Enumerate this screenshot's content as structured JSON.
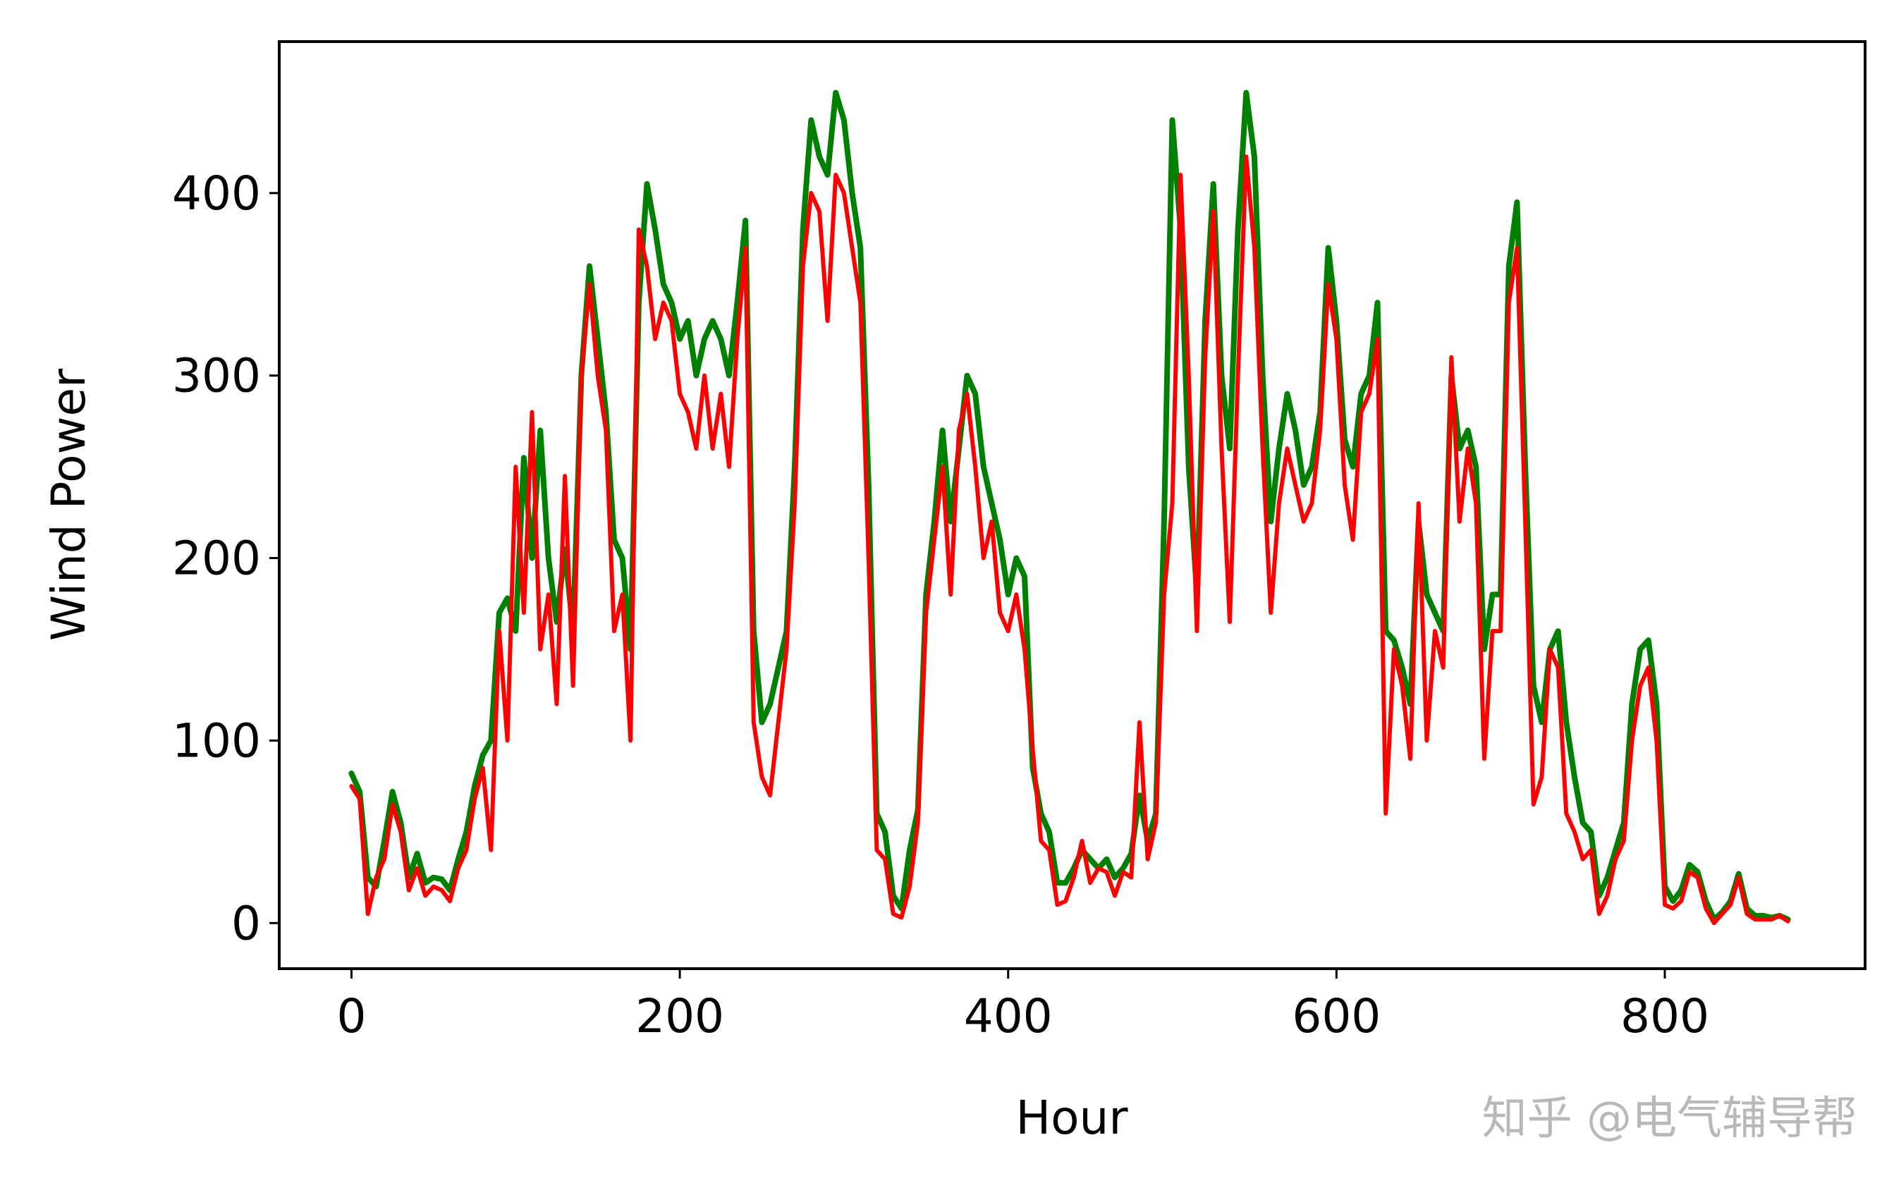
{
  "chart_data": {
    "type": "line",
    "xlabel": "Hour",
    "ylabel": "Wind Power",
    "xlim": [
      -44,
      922
    ],
    "ylim": [
      -25,
      483
    ],
    "xticks": [
      0,
      200,
      400,
      600,
      800
    ],
    "yticks": [
      0,
      100,
      200,
      300,
      400
    ],
    "grid": false,
    "legend": "none",
    "watermark": "知乎 @电气辅导帮",
    "series": [
      {
        "color": "#008000",
        "x": [
          0,
          5,
          10,
          15,
          20,
          25,
          30,
          35,
          40,
          45,
          50,
          55,
          60,
          65,
          70,
          75,
          80,
          85,
          90,
          95,
          100,
          105,
          110,
          115,
          120,
          125,
          130,
          135,
          140,
          145,
          150,
          155,
          160,
          165,
          170,
          175,
          180,
          185,
          190,
          195,
          200,
          205,
          210,
          215,
          220,
          225,
          230,
          235,
          240,
          245,
          250,
          255,
          260,
          265,
          270,
          275,
          280,
          285,
          290,
          295,
          300,
          305,
          310,
          315,
          320,
          325,
          330,
          335,
          340,
          345,
          350,
          355,
          360,
          365,
          370,
          375,
          380,
          385,
          390,
          395,
          400,
          405,
          410,
          415,
          420,
          425,
          430,
          435,
          440,
          445,
          450,
          455,
          460,
          465,
          470,
          475,
          480,
          485,
          490,
          495,
          500,
          505,
          510,
          515,
          520,
          525,
          530,
          535,
          540,
          545,
          550,
          555,
          560,
          565,
          570,
          575,
          580,
          585,
          590,
          595,
          600,
          605,
          610,
          615,
          620,
          625,
          630,
          635,
          640,
          645,
          650,
          655,
          660,
          665,
          670,
          675,
          680,
          685,
          690,
          695,
          700,
          705,
          710,
          715,
          720,
          725,
          730,
          735,
          740,
          745,
          750,
          755,
          760,
          765,
          770,
          775,
          780,
          785,
          790,
          795,
          800,
          805,
          810,
          815,
          820,
          825,
          830,
          835,
          840,
          845,
          850,
          855,
          860,
          865,
          870,
          875
        ],
        "values": [
          82,
          72,
          25,
          20,
          45,
          72,
          55,
          25,
          38,
          22,
          25,
          24,
          18,
          35,
          50,
          75,
          92,
          100,
          170,
          178,
          160,
          255,
          200,
          270,
          200,
          165,
          205,
          160,
          300,
          360,
          320,
          280,
          210,
          200,
          150,
          340,
          405,
          380,
          350,
          340,
          320,
          330,
          300,
          320,
          330,
          320,
          300,
          340,
          385,
          160,
          110,
          120,
          140,
          160,
          250,
          380,
          440,
          420,
          410,
          455,
          440,
          400,
          370,
          240,
          60,
          50,
          15,
          8,
          40,
          62,
          180,
          220,
          270,
          220,
          260,
          300,
          290,
          250,
          230,
          210,
          180,
          200,
          190,
          85,
          60,
          50,
          22,
          22,
          30,
          40,
          35,
          30,
          35,
          25,
          30,
          38,
          70,
          45,
          60,
          220,
          440,
          380,
          250,
          180,
          330,
          405,
          300,
          260,
          380,
          455,
          420,
          300,
          220,
          260,
          290,
          270,
          240,
          250,
          280,
          370,
          330,
          265,
          250,
          290,
          300,
          340,
          160,
          155,
          140,
          120,
          220,
          180,
          170,
          160,
          300,
          260,
          270,
          250,
          150,
          180,
          180,
          360,
          395,
          250,
          130,
          110,
          150,
          160,
          110,
          80,
          55,
          50,
          15,
          25,
          40,
          55,
          120,
          150,
          155,
          120,
          20,
          12,
          18,
          32,
          28,
          12,
          2,
          6,
          12,
          27,
          8,
          4,
          4,
          3,
          4,
          2
        ]
      },
      {
        "color": "#ff0000",
        "x": [
          0,
          5,
          10,
          15,
          20,
          25,
          30,
          35,
          40,
          45,
          50,
          55,
          60,
          65,
          70,
          75,
          80,
          85,
          90,
          95,
          100,
          105,
          110,
          115,
          120,
          125,
          130,
          135,
          140,
          145,
          150,
          155,
          160,
          165,
          170,
          175,
          180,
          185,
          190,
          195,
          200,
          205,
          210,
          215,
          220,
          225,
          230,
          235,
          240,
          245,
          250,
          255,
          260,
          265,
          270,
          275,
          280,
          285,
          290,
          295,
          300,
          305,
          310,
          315,
          320,
          325,
          330,
          335,
          340,
          345,
          350,
          355,
          360,
          365,
          370,
          375,
          380,
          385,
          390,
          395,
          400,
          405,
          410,
          415,
          420,
          425,
          430,
          435,
          440,
          445,
          450,
          455,
          460,
          465,
          470,
          475,
          480,
          485,
          490,
          495,
          500,
          505,
          510,
          515,
          520,
          525,
          530,
          535,
          540,
          545,
          550,
          555,
          560,
          565,
          570,
          575,
          580,
          585,
          590,
          595,
          600,
          605,
          610,
          615,
          620,
          625,
          630,
          635,
          640,
          645,
          650,
          655,
          660,
          665,
          670,
          675,
          680,
          685,
          690,
          695,
          700,
          705,
          710,
          715,
          720,
          725,
          730,
          735,
          740,
          745,
          750,
          755,
          760,
          765,
          770,
          775,
          780,
          785,
          790,
          795,
          800,
          805,
          810,
          815,
          820,
          825,
          830,
          835,
          840,
          845,
          850,
          855,
          860,
          865,
          870,
          875
        ],
        "values": [
          75,
          68,
          5,
          25,
          35,
          65,
          50,
          18,
          30,
          15,
          20,
          18,
          12,
          30,
          40,
          68,
          85,
          40,
          160,
          100,
          250,
          170,
          280,
          150,
          180,
          120,
          245,
          130,
          300,
          350,
          300,
          270,
          160,
          180,
          100,
          380,
          360,
          320,
          340,
          330,
          290,
          280,
          260,
          300,
          260,
          290,
          250,
          320,
          370,
          110,
          80,
          70,
          110,
          150,
          230,
          360,
          400,
          390,
          330,
          410,
          400,
          370,
          340,
          200,
          40,
          35,
          5,
          3,
          20,
          55,
          170,
          210,
          250,
          180,
          270,
          290,
          250,
          200,
          220,
          170,
          160,
          180,
          150,
          95,
          45,
          40,
          10,
          12,
          25,
          45,
          22,
          30,
          28,
          15,
          28,
          25,
          110,
          35,
          55,
          180,
          230,
          410,
          300,
          160,
          310,
          390,
          260,
          165,
          300,
          420,
          370,
          260,
          170,
          230,
          260,
          240,
          220,
          230,
          270,
          350,
          320,
          240,
          210,
          280,
          290,
          320,
          60,
          150,
          130,
          90,
          230,
          100,
          160,
          140,
          310,
          220,
          260,
          230,
          90,
          160,
          160,
          340,
          370,
          220,
          65,
          80,
          150,
          140,
          60,
          50,
          35,
          40,
          5,
          15,
          35,
          45,
          100,
          130,
          140,
          100,
          10,
          8,
          12,
          28,
          25,
          8,
          0,
          5,
          10,
          25,
          5,
          2,
          2,
          2,
          4,
          1
        ]
      }
    ]
  }
}
